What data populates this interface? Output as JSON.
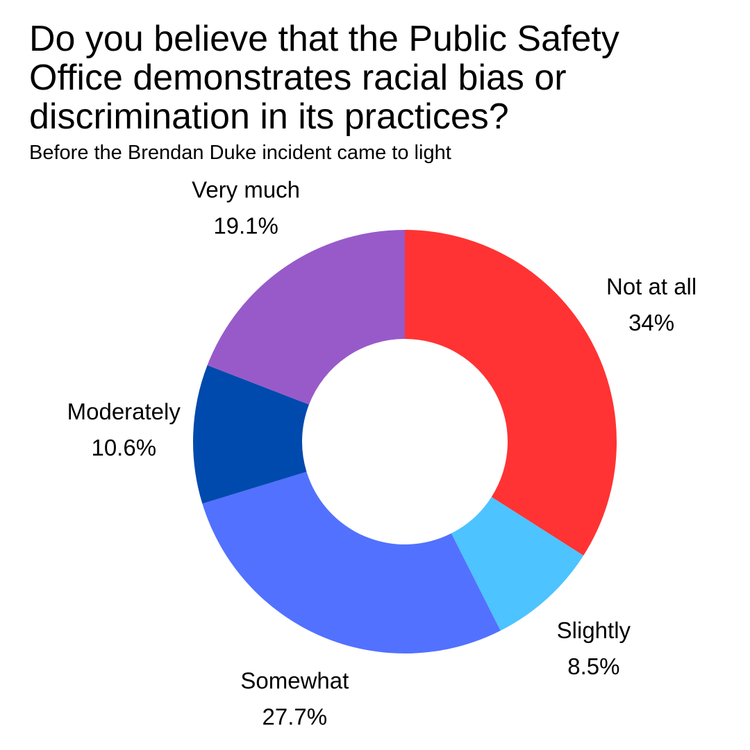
{
  "chart_data": {
    "type": "donut",
    "title": "Do you believe that the Public Safety Office demonstrates racial bias or discrimination in its practices?",
    "subtitle": "Before the Brendan Duke incident came to light",
    "categories": [
      "Not at all",
      "Slightly",
      "Somewhat",
      "Moderately",
      "Very much"
    ],
    "values": [
      34,
      8.5,
      27.7,
      10.6,
      19.1
    ],
    "value_labels": [
      "34%",
      "8.5%",
      "27.7%",
      "10.6%",
      "19.1%"
    ],
    "colors": [
      "#ff3333",
      "#4dc3ff",
      "#5271ff",
      "#004aad",
      "#985ac9"
    ]
  }
}
